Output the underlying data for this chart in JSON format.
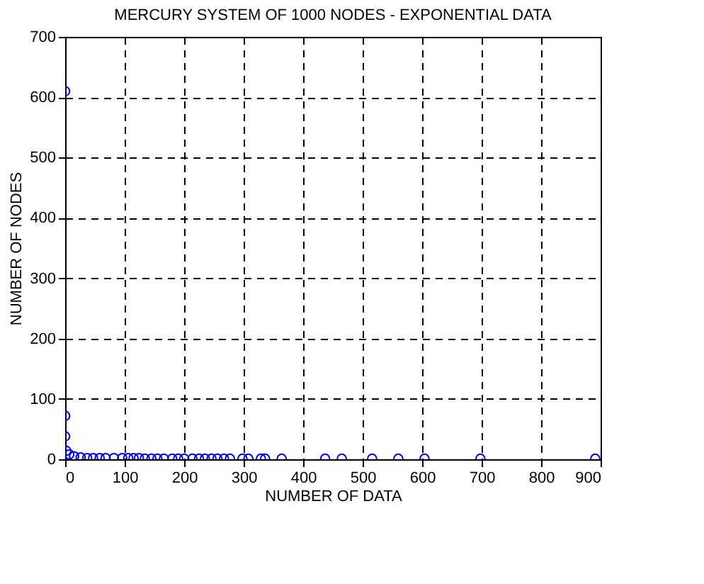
{
  "chart_data": {
    "type": "scatter",
    "title": "MERCURY SYSTEM OF 1000 NODES - EXPONENTIAL DATA",
    "xlabel": "NUMBER OF DATA",
    "ylabel": "NUMBER OF NODES",
    "x": [
      0,
      0,
      0,
      2,
      7,
      15,
      26,
      37,
      47,
      58,
      68,
      82,
      96,
      106,
      115,
      124,
      134,
      145,
      155,
      166,
      180,
      190,
      200,
      214,
      225,
      235,
      246,
      256,
      267,
      277,
      298,
      308,
      329,
      336,
      364,
      437,
      465,
      516,
      560,
      604,
      698,
      891
    ],
    "values": [
      610,
      72,
      38,
      14,
      8,
      5,
      3,
      2,
      2,
      2,
      2,
      2,
      2,
      2,
      2,
      2,
      1,
      1,
      1,
      1,
      1,
      1,
      1,
      1,
      1,
      1,
      1,
      1,
      1,
      1,
      1,
      1,
      1,
      1,
      1,
      1,
      1,
      1,
      1,
      1,
      1,
      1
    ],
    "color": "#0000ff",
    "marker": "circle",
    "grid": true,
    "xlim": [
      0,
      900
    ],
    "xticks": [
      0,
      100,
      200,
      300,
      400,
      500,
      600,
      700,
      800,
      900
    ],
    "ylim": [
      0,
      700
    ],
    "yticks": [
      0,
      100,
      200,
      300,
      400,
      500,
      600,
      700
    ]
  }
}
